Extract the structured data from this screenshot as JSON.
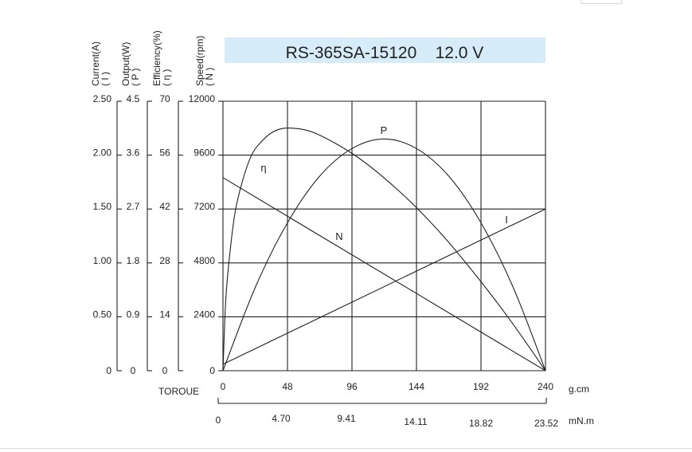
{
  "chart_data": {
    "type": "line",
    "title": "RS-365SA-15120    12.0 V",
    "colors": {
      "title_band": "#d6ecf8",
      "lines": "#222222",
      "background": "#ffffff"
    },
    "grid": true,
    "x_axis": {
      "label": "TOROUE",
      "primary_unit": "g.cm",
      "primary_ticks": [
        "0",
        "48",
        "96",
        "144",
        "192",
        "240"
      ],
      "secondary_unit": "mN.m",
      "secondary_ticks": [
        "0",
        "4.70",
        "9.41",
        "14.11",
        "18.82",
        "23.52"
      ],
      "range": [
        0,
        240
      ]
    },
    "y_axes": [
      {
        "key": "current",
        "label": "Current(A)",
        "symbol": "( I )",
        "ticks": [
          "0",
          "0.50",
          "1.00",
          "1.50",
          "2.00",
          "2.50"
        ],
        "range": [
          0,
          2.5
        ]
      },
      {
        "key": "output",
        "label": "Output(W)",
        "symbol": "( P )",
        "ticks": [
          "0",
          "0.9",
          "1.8",
          "2.7",
          "3.6",
          "4.5"
        ],
        "range": [
          0,
          4.5
        ]
      },
      {
        "key": "efficiency",
        "label": "Efficiency(%)",
        "symbol": "( η )",
        "ticks": [
          "0",
          "14",
          "28",
          "42",
          "56",
          "70"
        ],
        "range": [
          0,
          70
        ]
      },
      {
        "key": "speed",
        "label": "Speed(rpm)",
        "symbol": "( N )",
        "ticks": [
          "0",
          "2400",
          "4800",
          "7200",
          "9600",
          "12000"
        ],
        "range": [
          0,
          12000
        ]
      }
    ],
    "series": [
      {
        "name": "N",
        "axis": "speed",
        "x": [
          0,
          240
        ],
        "y": [
          8600,
          0
        ]
      },
      {
        "name": "I",
        "axis": "current",
        "x": [
          0,
          240
        ],
        "y": [
          0.06,
          1.5
        ]
      },
      {
        "name": "P",
        "axis": "output",
        "x": [
          0,
          24,
          48,
          72,
          96,
          120,
          144,
          168,
          192,
          216,
          240
        ],
        "y": [
          0,
          1.39,
          2.47,
          3.25,
          3.71,
          3.87,
          3.71,
          3.25,
          2.47,
          1.39,
          0
        ]
      },
      {
        "name": "η",
        "axis": "efficiency",
        "x": [
          0,
          2,
          5,
          10,
          20,
          30,
          40,
          52,
          70,
          100,
          130,
          160,
          190,
          215,
          240
        ],
        "y": [
          0,
          18,
          30,
          43,
          55,
          60,
          62.5,
          63,
          61.5,
          55.5,
          47,
          36.5,
          24,
          12.5,
          0
        ]
      }
    ]
  }
}
